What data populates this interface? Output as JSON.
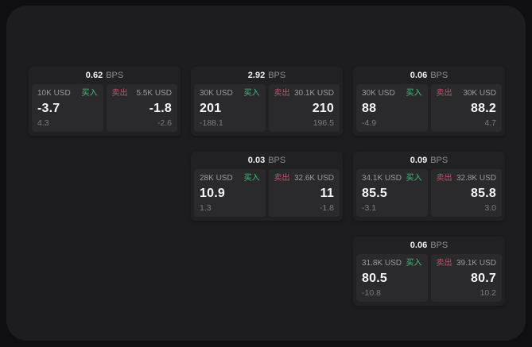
{
  "labels": {
    "bps_unit": "BPS",
    "buy": "买入",
    "sell": "卖出"
  },
  "colors": {
    "buy_accent": "#43be7b",
    "sell_accent": "#c4506a",
    "panel_bg": "#1d1d1f",
    "card_bg": "#212123",
    "pane_bg": "#2a2a2d",
    "price_text": "#f5f5f5",
    "muted_text": "#9a9a9e"
  },
  "cards": [
    {
      "bps": "0.62",
      "buy": {
        "amount": "10K USD",
        "price": "-3.7",
        "delta": "4.3"
      },
      "sell": {
        "amount": "5.5K USD",
        "price": "-1.8",
        "delta": "-2.6"
      }
    },
    {
      "bps": "2.92",
      "buy": {
        "amount": "30K USD",
        "price": "201",
        "delta": "-188.1"
      },
      "sell": {
        "amount": "30.1K USD",
        "price": "210",
        "delta": "196.5"
      }
    },
    {
      "bps": "0.06",
      "buy": {
        "amount": "30K USD",
        "price": "88",
        "delta": "-4.9"
      },
      "sell": {
        "amount": "30K USD",
        "price": "88.2",
        "delta": "4.7"
      }
    },
    {
      "bps": "0.03",
      "buy": {
        "amount": "28K USD",
        "price": "10.9",
        "delta": "1.3"
      },
      "sell": {
        "amount": "32.6K USD",
        "price": "11",
        "delta": "-1.8"
      }
    },
    {
      "bps": "0.09",
      "buy": {
        "amount": "34.1K USD",
        "price": "85.5",
        "delta": "-3.1"
      },
      "sell": {
        "amount": "32.8K USD",
        "price": "85.8",
        "delta": "3.0"
      }
    },
    {
      "bps": "0.06",
      "buy": {
        "amount": "31.8K USD",
        "price": "80.5",
        "delta": "-10.8"
      },
      "sell": {
        "amount": "39.1K USD",
        "price": "80.7",
        "delta": "10.2"
      }
    }
  ]
}
